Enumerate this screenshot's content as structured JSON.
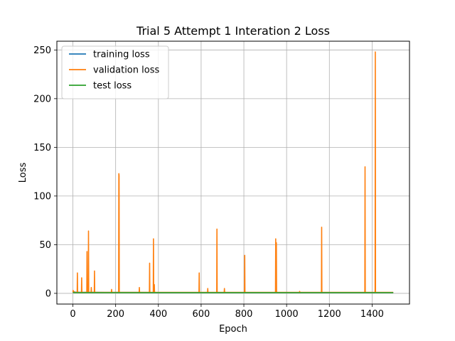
{
  "chart_data": {
    "type": "line",
    "title": "Trial 5 Attempt 1 Interation 2 Loss",
    "xlabel": "Epoch",
    "ylabel": "Loss",
    "xlim": [
      -75,
      1575
    ],
    "ylim": [
      -11,
      259
    ],
    "xticks": [
      0,
      200,
      400,
      600,
      800,
      1000,
      1200,
      1400
    ],
    "yticks": [
      0,
      50,
      100,
      150,
      200,
      250
    ],
    "grid": true,
    "legend_position": "top-left",
    "series": [
      {
        "name": "training loss",
        "color": "#1f77b4",
        "x": [
          0,
          3,
          10,
          30,
          60,
          100,
          150,
          200,
          300,
          400,
          500,
          600,
          700,
          800,
          900,
          1000,
          1100,
          1200,
          1300,
          1400,
          1499
        ],
        "y": [
          2.5,
          1.8,
          1.3,
          1.1,
          1.0,
          1.0,
          0.9,
          0.9,
          0.9,
          0.8,
          0.8,
          0.8,
          0.8,
          0.8,
          0.8,
          0.8,
          0.8,
          0.8,
          0.8,
          0.8,
          0.8
        ]
      },
      {
        "name": "validation loss",
        "color": "#ff7f0e",
        "x": [
          0,
          1,
          2,
          3,
          4,
          5,
          20,
          21,
          22,
          40,
          41,
          42,
          65,
          66,
          67,
          68,
          69,
          72,
          73,
          74,
          75,
          85,
          86,
          87,
          100,
          101,
          102,
          180,
          181,
          182,
          214,
          215,
          216,
          217,
          310,
          311,
          312,
          358,
          359,
          360,
          376,
          377,
          378,
          380,
          381,
          382,
          590,
          591,
          592,
          630,
          631,
          632,
          673,
          674,
          675,
          708,
          709,
          710,
          803,
          804,
          805,
          948,
          949,
          950,
          951,
          952,
          953,
          1060,
          1061,
          1062,
          1163,
          1164,
          1165,
          1366,
          1367,
          1368,
          1414,
          1415,
          1416,
          1499
        ],
        "y": [
          1,
          3,
          1,
          1,
          2,
          1,
          1,
          21,
          1,
          1,
          16,
          1,
          1,
          43,
          1,
          1,
          1,
          1,
          64,
          1,
          1,
          1,
          6,
          1,
          1,
          23,
          1,
          1,
          4,
          1,
          1,
          123,
          121,
          1,
          1,
          6,
          1,
          1,
          31,
          1,
          1,
          56,
          1,
          1,
          9,
          1,
          1,
          21,
          1,
          1,
          5,
          1,
          1,
          66,
          1,
          1,
          5,
          1,
          1,
          39,
          1,
          1,
          56,
          1,
          1,
          52,
          1,
          1,
          2,
          1,
          1,
          68,
          1,
          1,
          130,
          1,
          1,
          248,
          1,
          1
        ]
      },
      {
        "name": "test loss",
        "color": "#2ca02c",
        "x": [
          0,
          3,
          10,
          50,
          100,
          200,
          300,
          400,
          500,
          600,
          700,
          800,
          900,
          1000,
          1100,
          1200,
          1300,
          1400,
          1499
        ],
        "y": [
          1.2,
          0.8,
          0.7,
          0.7,
          0.7,
          0.7,
          0.7,
          0.7,
          0.7,
          0.7,
          0.7,
          0.7,
          0.7,
          0.7,
          0.7,
          0.7,
          0.7,
          0.7,
          0.7
        ]
      }
    ]
  }
}
